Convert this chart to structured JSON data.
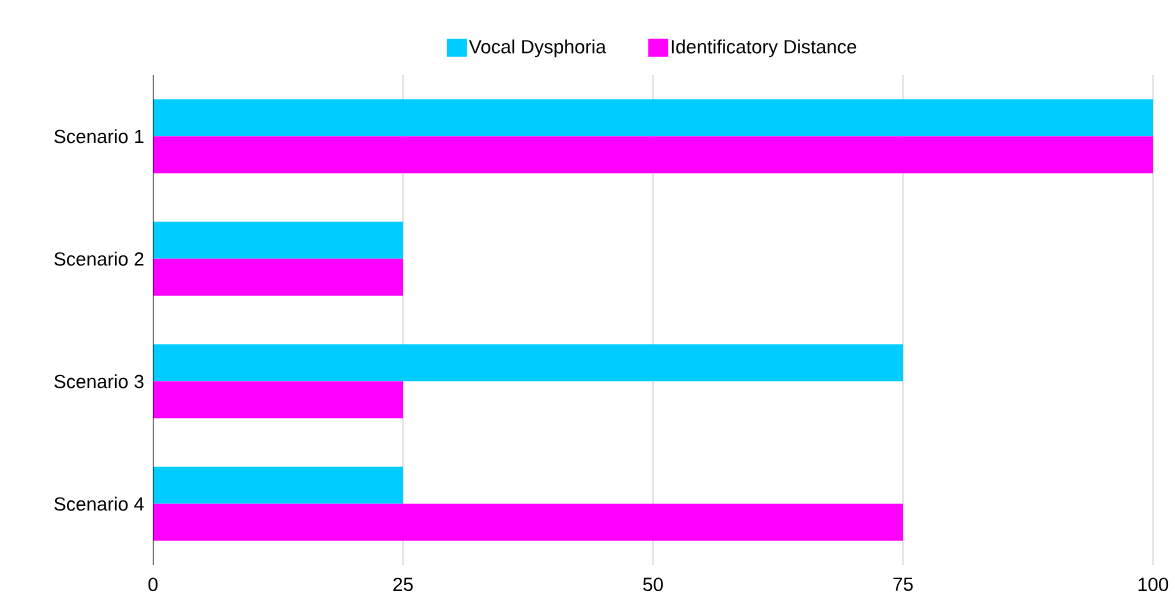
{
  "chart_data": {
    "type": "bar",
    "orientation": "horizontal",
    "categories": [
      "Scenario 1",
      "Scenario 2",
      "Scenario 3",
      "Scenario 4"
    ],
    "series": [
      {
        "name": "Vocal Dysphoria",
        "color": "#00ccff",
        "values": [
          100,
          25,
          75,
          25
        ]
      },
      {
        "name": "Identificatory Distance",
        "color": "#ff00ff",
        "values": [
          100,
          25,
          25,
          75
        ]
      }
    ],
    "xlim": [
      0,
      100
    ],
    "xticks": [
      0,
      25,
      50,
      75,
      100
    ],
    "grid": "x",
    "legend": "top"
  }
}
